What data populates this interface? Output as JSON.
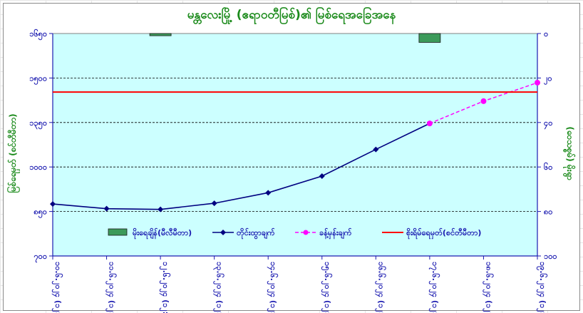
{
  "chart_data": {
    "type": "line",
    "title": "မန္တလေးမြို့ (ဧရာဝတီမြစ်)၏ မြစ်ရေအခြေအနေ",
    "ylabel_left": "မြစ်ရေမှတ် (စင်တီမီတာ)",
    "ylabel_right": "(ဝေသစ္စမ်) မိုးရွာ",
    "categories": [
      "၁၀.၆.၂၀၂၄ (၁၂:၃၀)",
      "၁၁.၆.၂၀၂၄ (၁၂:၃၀)",
      "၁၂.၆.၂၀၂၄ (၁၂:၃၀)",
      "၁၃.၆.၂၀၂၄ (၁၂:၃၀)",
      "၁၄.၆.၂၀၂၄ (၁၂:၃၀)",
      "၁၅.၆.၂၀၂၄ (၁၂:၃၀)",
      "၁၆.၆.၂၀၂၄ (၁၂:၃၀)",
      "၁၇.၆.၂၀၂၄ (၁၂:၃၀)",
      "၁၈.၆.၂၀၂၄ (၁၂:၃၀)",
      "၁၉.၆.၂၀၂၄ (၁၂:၃၀)"
    ],
    "y_left_ticks": [
      "၁၆၅၀",
      "၁၅၀၀",
      "၁၃၅၀",
      "၁၀၀၀",
      "၈၅၀",
      "၇၀၀"
    ],
    "y_right_ticks": [
      "၀",
      "၂၀",
      "၄၀",
      "၆၀",
      "၈၀",
      "၁၀၀"
    ],
    "y_left_range": [
      700,
      1650
    ],
    "y_right_range": [
      100,
      0
    ],
    "series": [
      {
        "name": "မိုးရေချိန်(မီလီမီတာ)",
        "type": "bar",
        "axis": "right",
        "color": "#3c9a5a",
        "values": [
          0,
          0,
          1,
          0,
          0,
          0,
          0,
          4,
          0,
          0
        ]
      },
      {
        "name": "တိုင်းထွာချက်",
        "type": "line",
        "axis": "left",
        "color": "#000080",
        "values": [
          922,
          902,
          899,
          925,
          970,
          1041,
          1155,
          1266,
          null,
          null
        ]
      },
      {
        "name": "ခန့်မှန်းချက်",
        "type": "line-dashed",
        "axis": "left",
        "color": "#ff00ff",
        "values": [
          null,
          null,
          null,
          null,
          null,
          null,
          null,
          1266,
          1361,
          1440
        ]
      },
      {
        "name": "စိုးရိမ်ရေမှတ်(စင်တီမီတာ)",
        "type": "hline",
        "axis": "left",
        "color": "#ff0000",
        "value": 1400
      }
    ],
    "legend_position": "bottom-inside",
    "gridlines": true
  }
}
